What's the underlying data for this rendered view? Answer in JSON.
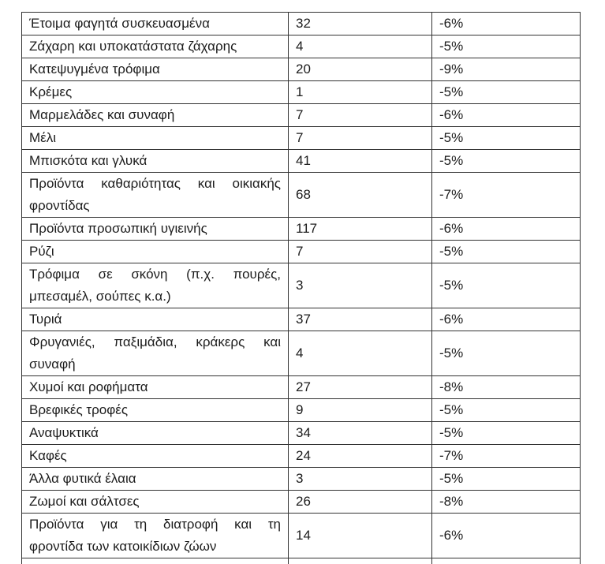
{
  "page": {
    "background_color": "#ffffff",
    "border_color": "#333333",
    "text_color": "#1c1c1c"
  },
  "table": {
    "description": "product-category-table",
    "rows": [
      {
        "category_lines": [
          "Έτοιμα φαγητά συσκευασμένα"
        ],
        "count": "32",
        "change": "-6%"
      },
      {
        "category_lines": [
          "Ζάχαρη και υποκατάστατα ζάχαρης"
        ],
        "count": "4",
        "change": "-5%"
      },
      {
        "category_lines": [
          "Κατεψυγμένα τρόφιμα"
        ],
        "count": "20",
        "change": "-9%"
      },
      {
        "category_lines": [
          "Κρέμες"
        ],
        "count": "1",
        "change": "-5%"
      },
      {
        "category_lines": [
          "Μαρμελάδες και συναφή"
        ],
        "count": "7",
        "change": "-6%"
      },
      {
        "category_lines": [
          "Μέλι"
        ],
        "count": "7",
        "change": "-5%"
      },
      {
        "category_lines": [
          "Μπισκότα και γλυκά"
        ],
        "count": "41",
        "change": "-5%"
      },
      {
        "category_lines": [
          "Προϊόντα καθαριότητας και οικιακής",
          "φροντίδας"
        ],
        "count": "68",
        "change": "-7%"
      },
      {
        "category_lines": [
          "Προϊόντα προσωπική υγιεινής"
        ],
        "count": "117",
        "change": "-6%"
      },
      {
        "category_lines": [
          "Ρύζι"
        ],
        "count": "7",
        "change": "-5%"
      },
      {
        "category_lines": [
          "Τρόφιμα σε σκόνη (π.χ. πουρές,",
          "μπεσαμέλ, σούπες κ.α.)"
        ],
        "count": "3",
        "change": "-5%"
      },
      {
        "category_lines": [
          "Τυριά"
        ],
        "count": "37",
        "change": "-6%"
      },
      {
        "category_lines": [
          "Φρυγανιές, παξιμάδια, κράκερς και",
          "συναφή"
        ],
        "count": "4",
        "change": "-5%"
      },
      {
        "category_lines": [
          "Χυμοί και ροφήματα"
        ],
        "count": "27",
        "change": "-8%"
      },
      {
        "category_lines": [
          "Βρεφικές τροφές"
        ],
        "count": "9",
        "change": "-5%"
      },
      {
        "category_lines": [
          "Αναψυκτικά"
        ],
        "count": "34",
        "change": "-5%"
      },
      {
        "category_lines": [
          "Καφές"
        ],
        "count": "24",
        "change": "-7%"
      },
      {
        "category_lines": [
          "Άλλα φυτικά έλαια"
        ],
        "count": "3",
        "change": "-5%"
      },
      {
        "category_lines": [
          "Ζωμοί και σάλτσες"
        ],
        "count": "26",
        "change": "-8%"
      },
      {
        "category_lines": [
          "Προϊόντα για τη διατροφή και τη",
          "φροντίδα των κατοικίδιων ζώων"
        ],
        "count": "14",
        "change": "-6%"
      },
      {
        "category_lines": [],
        "count": "",
        "change": "",
        "partial": true
      }
    ]
  }
}
